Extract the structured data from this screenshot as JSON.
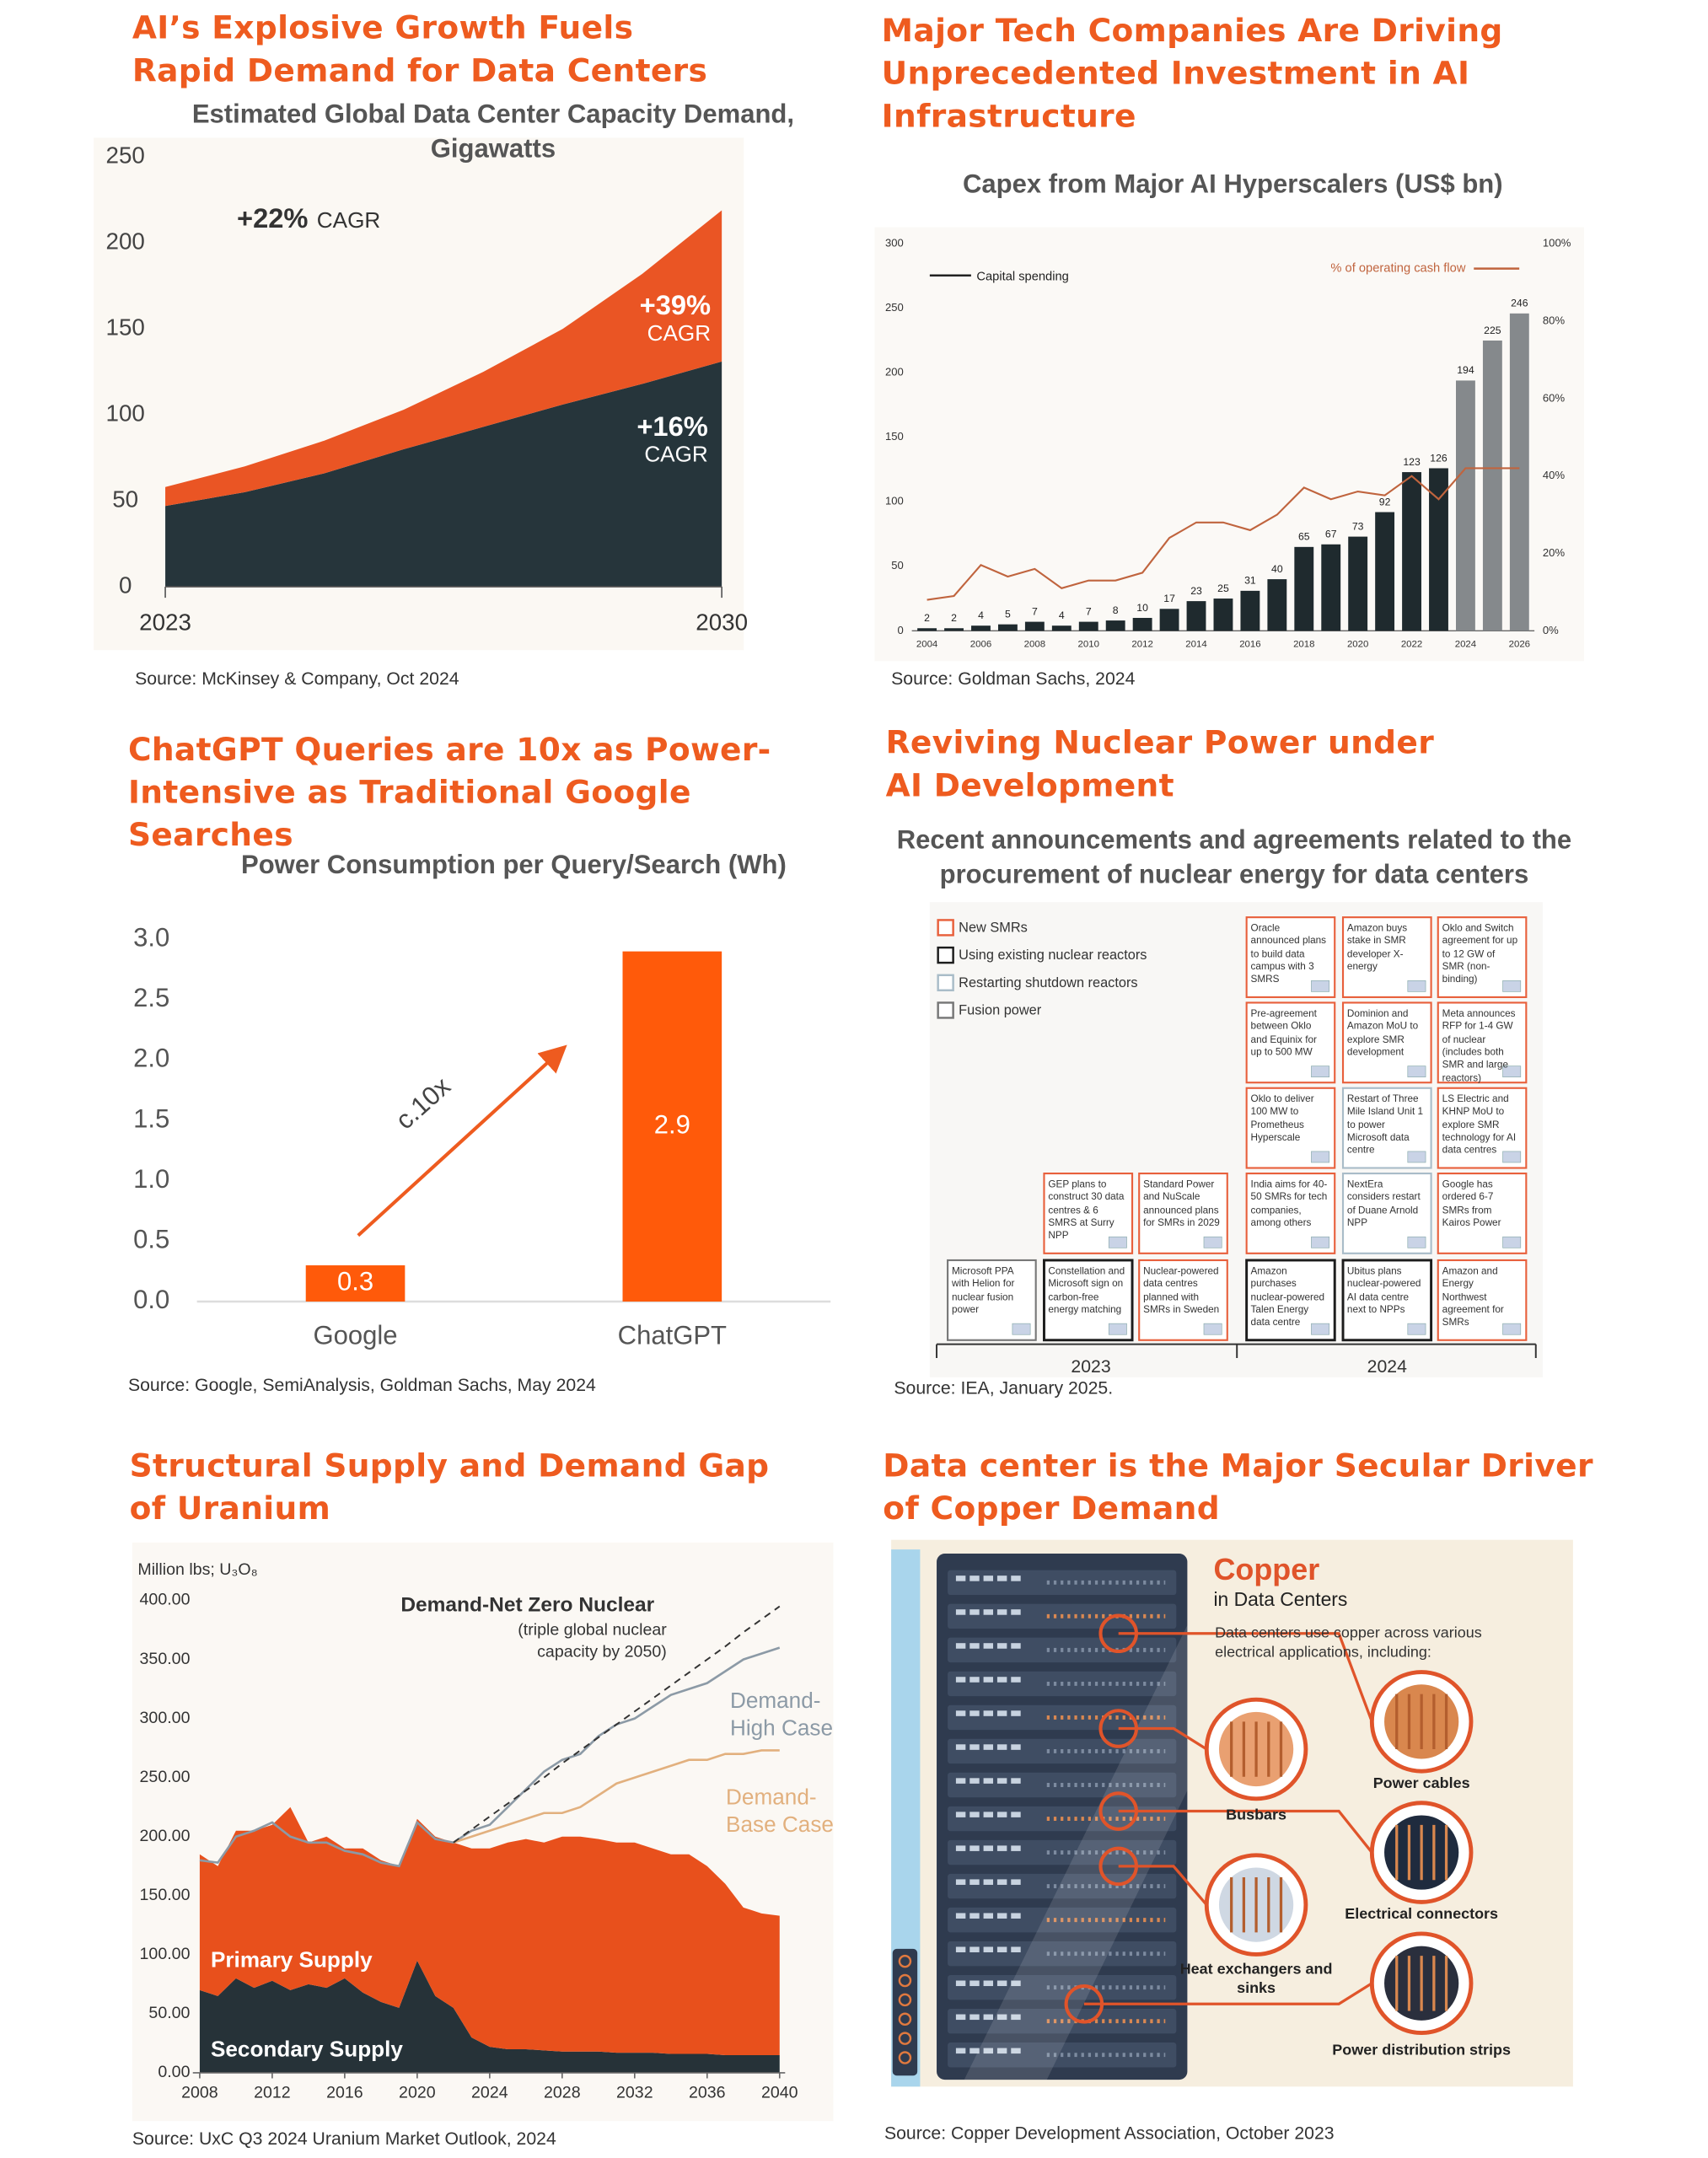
{
  "chart_data": [
    {
      "type": "area",
      "title": "AI’s Explosive Growth Fuels Rapid Demand for Data Centers",
      "subtitle": "Estimated Global Data Center Capacity Demand, Gigawatts",
      "x": [
        2023,
        2024,
        2025,
        2026,
        2027,
        2028,
        2029,
        2030
      ],
      "xlim": [
        2023,
        2030
      ],
      "xticks": [
        2023,
        2030
      ],
      "ylim": [
        0,
        250
      ],
      "yticks": [
        0,
        50,
        100,
        150,
        200,
        250
      ],
      "stacked": true,
      "series": [
        {
          "color": "#26353b",
          "values": [
            47,
            55,
            66,
            80,
            93,
            106,
            118,
            131
          ]
        },
        {
          "color": "#ea5524",
          "values": [
            11,
            15,
            19,
            23,
            32,
            44,
            64,
            88
          ]
        }
      ],
      "annotations": [
        {
          "text": "+22%",
          "suffix": "CAGR"
        },
        {
          "text": "+39%",
          "suffix": "CAGR"
        },
        {
          "text": "+16%",
          "suffix": "CAGR"
        }
      ],
      "source": "Source: McKinsey & Company, Oct 2024"
    },
    {
      "type": "bar",
      "title": "Major Tech Companies Are Driving Unprecedented Investment in AI Infrastructure",
      "subtitle": "Capex from Major AI Hyperscalers (US$ bn)",
      "categories": [
        "2004",
        null,
        "2006",
        null,
        "2008",
        null,
        "2010",
        null,
        "2012",
        null,
        "2014",
        null,
        "2016",
        null,
        "2018",
        null,
        "2020",
        null,
        "2022",
        null,
        "2024",
        null,
        "2026"
      ],
      "ylim": [
        0,
        300
      ],
      "yticks": [
        0,
        50,
        100,
        150,
        200,
        250,
        300
      ],
      "y2lim": [
        0,
        100
      ],
      "y2ticks": [
        {
          "value": 0,
          "label": "0%"
        },
        {
          "value": 20,
          "label": "20%"
        },
        {
          "value": 40,
          "label": "40%"
        },
        {
          "value": 60,
          "label": "60%"
        },
        {
          "value": 80,
          "label": "80%"
        },
        {
          "value": 100,
          "label": "100%"
        }
      ],
      "series": [
        {
          "name": "Capital spending",
          "type": "bar",
          "values": [
            2,
            2,
            4,
            5,
            7,
            4,
            7,
            8,
            10,
            17,
            23,
            25,
            31,
            40,
            65,
            67,
            73,
            92,
            123,
            126,
            194,
            225,
            246
          ],
          "colors": [
            "#1f2a2e",
            "#1f2a2e",
            "#1f2a2e",
            "#1f2a2e",
            "#1f2a2e",
            "#1f2a2e",
            "#1f2a2e",
            "#1f2a2e",
            "#1f2a2e",
            "#1f2a2e",
            "#1f2a2e",
            "#1f2a2e",
            "#1f2a2e",
            "#1f2a2e",
            "#1f2a2e",
            "#1f2a2e",
            "#1f2a2e",
            "#1f2a2e",
            "#1f2a2e",
            "#1f2a2e",
            "#85898c",
            "#85898c",
            "#85898c"
          ]
        },
        {
          "name": "% of operating cash flow",
          "type": "line",
          "axis": "y2",
          "color": "#c0643e",
          "values": [
            8,
            9,
            17,
            14,
            16,
            11,
            13,
            13,
            15,
            24,
            28,
            28,
            26,
            30,
            37,
            34,
            36,
            35,
            40,
            34,
            42,
            42,
            42
          ]
        }
      ],
      "source": "Source: Goldman Sachs, 2024"
    },
    {
      "type": "bar",
      "title": "ChatGPT Queries are 10x as Power-Intensive as Traditional Google Searches",
      "subtitle": "Power Consumption per Query/Search (Wh)",
      "categories": [
        "Google",
        "ChatGPT"
      ],
      "values": [
        0.3,
        2.9
      ],
      "color": "#ff5a0a",
      "ylim": [
        0,
        3
      ],
      "yticks": [
        {
          "value": 0,
          "label": "0.0"
        },
        0.5,
        {
          "value": 1,
          "label": "1.0"
        },
        1.5,
        {
          "value": 2,
          "label": "2.0"
        },
        2.5,
        {
          "value": 3,
          "label": "3.0"
        }
      ],
      "annotation": "c.10x",
      "source": "Source: Google, SemiAnalysis, Goldman Sachs, May 2024"
    },
    {
      "type": "area",
      "title": "Structural Supply and Demand Gap of Uranium",
      "ylabel": "Million lbs; U₃O₈",
      "x": [
        2008,
        2009,
        2010,
        2011,
        2012,
        2013,
        2014,
        2015,
        2016,
        2017,
        2018,
        2019,
        2020,
        2021,
        2022,
        2023,
        2024,
        2025,
        2026,
        2027,
        2028,
        2029,
        2030,
        2031,
        2032,
        2033,
        2034,
        2035,
        2036,
        2037,
        2038,
        2039,
        2040
      ],
      "xlim": [
        2008,
        2040
      ],
      "xticks": [
        2008,
        2012,
        2016,
        2020,
        2024,
        2028,
        2032,
        2036,
        2040
      ],
      "ylim": [
        0,
        400
      ],
      "yticks": [
        {
          "value": 0,
          "label": "0.00"
        },
        {
          "value": 50,
          "label": "50.00"
        },
        {
          "value": 100,
          "label": "100.00"
        },
        {
          "value": 150,
          "label": "150.00"
        },
        {
          "value": 200,
          "label": "200.00"
        },
        {
          "value": 250,
          "label": "250.00"
        },
        {
          "value": 300,
          "label": "300.00"
        },
        {
          "value": 350,
          "label": "350.00"
        },
        {
          "value": 400,
          "label": "400.00"
        }
      ],
      "stacked": true,
      "series": [
        {
          "name": "Secondary Supply",
          "type": "area",
          "color": "#263238",
          "values": [
            70,
            65,
            80,
            72,
            78,
            70,
            75,
            72,
            80,
            68,
            60,
            55,
            95,
            65,
            55,
            30,
            22,
            20,
            20,
            19,
            18,
            18,
            18,
            17,
            17,
            17,
            16,
            16,
            16,
            15,
            15,
            15,
            15
          ]
        },
        {
          "name": "Primary Supply",
          "type": "area",
          "color": "#e8501c",
          "values": [
            115,
            110,
            125,
            133,
            132,
            155,
            120,
            128,
            110,
            122,
            120,
            120,
            120,
            135,
            140,
            160,
            168,
            175,
            178,
            176,
            182,
            182,
            180,
            178,
            178,
            173,
            169,
            169,
            159,
            145,
            125,
            120,
            118
          ]
        },
        {
          "name": "Demand-High Case",
          "type": "line",
          "color": "#8c9aa6",
          "values": [
            180,
            178,
            200,
            205,
            212,
            200,
            195,
            195,
            188,
            185,
            178,
            175,
            212,
            198,
            195,
            205,
            210,
            225,
            240,
            255,
            265,
            270,
            285,
            295,
            300,
            310,
            320,
            325,
            330,
            340,
            350,
            355,
            360
          ]
        },
        {
          "name": "Demand-Base Case",
          "type": "line",
          "color": "#e2b07e",
          "values": [
            null,
            null,
            null,
            null,
            null,
            null,
            null,
            null,
            null,
            null,
            null,
            null,
            null,
            null,
            195,
            200,
            205,
            210,
            215,
            220,
            220,
            225,
            235,
            245,
            250,
            255,
            260,
            265,
            265,
            270,
            270,
            273,
            273
          ]
        },
        {
          "name": "Demand-Net Zero Nuclear",
          "type": "line",
          "dashed": true,
          "color": "#333333",
          "note": "(triple global nuclear capacity by 2050)",
          "values": [
            null,
            null,
            null,
            null,
            null,
            null,
            null,
            null,
            null,
            null,
            null,
            null,
            null,
            null,
            195,
            206,
            217,
            228,
            239,
            250,
            262,
            273,
            284,
            295,
            306,
            317,
            328,
            339,
            350,
            361,
            373,
            384,
            395
          ]
        }
      ],
      "source": "Source: UxC Q3 2024 Uranium Market Outlook, 2024"
    }
  ],
  "nuclear": {
    "title": "Reviving Nuclear Power under AI Development",
    "subtitle": "Recent announcements and agreements related to the procurement of nuclear energy for data centers",
    "legend": [
      {
        "label": "New SMRs",
        "color": "#e8603c"
      },
      {
        "label": "Using existing nuclear reactors",
        "color": "#1c1c1c"
      },
      {
        "label": "Restarting shutdown reactors",
        "color": "#a9bcc8"
      },
      {
        "label": "Fusion power",
        "color": "#777777"
      }
    ],
    "years": [
      "2023",
      "2024"
    ],
    "columns": [
      [
        {
          "text": "Microsoft PPA with Helion for nuclear fusion power",
          "color": "#777777"
        }
      ],
      [
        {
          "text": "Constellation and Microsoft sign on carbon-free energy matching",
          "color": "#1c1c1c"
        },
        {
          "text": "GEP plans to construct 30 data centres & 6 SMRS at Surry NPP",
          "color": "#e8603c"
        }
      ],
      [
        {
          "text": "Nuclear-powered data centres planned with SMRs in Sweden",
          "color": "#e8603c"
        },
        {
          "text": "Standard Power and NuScale announced plans for SMRs in 2029",
          "color": "#e8603c"
        }
      ],
      [
        {
          "text": "Amazon purchases nuclear-powered Talen Energy data centre",
          "color": "#1c1c1c"
        },
        {
          "text": "India aims for 40-50 SMRs for tech companies, among others",
          "color": "#e8603c"
        },
        {
          "text": "Oklo to deliver 100 MW to Prometheus Hyperscale",
          "color": "#e8603c"
        },
        {
          "text": "Pre-agreement between Oklo and Equinix for up to 500 MW",
          "color": "#e8603c"
        },
        {
          "text": "Oracle announced plans to build data campus with 3 SMRS",
          "color": "#e8603c"
        }
      ],
      [
        {
          "text": "Ubitus plans nuclear-powered AI data centre next to NPPs",
          "color": "#1c1c1c"
        },
        {
          "text": "NextEra considers restart of Duane Arnold NPP",
          "color": "#a9bcc8"
        },
        {
          "text": "Restart of Three Mile Island Unit 1 to power Microsoft data centre",
          "color": "#a9bcc8"
        },
        {
          "text": "Dominion and Amazon MoU to explore SMR development",
          "color": "#e8603c"
        },
        {
          "text": "Amazon buys stake in SMR developer X-energy",
          "color": "#e8603c"
        }
      ],
      [
        {
          "text": "Amazon and Energy Northwest agreement for SMRs",
          "color": "#e8603c"
        },
        {
          "text": "Google has ordered 6-7 SMRs from Kairos Power",
          "color": "#e8603c"
        },
        {
          "text": "LS Electric and KHNP MoU to explore SMR technology for AI data centres",
          "color": "#e8603c"
        },
        {
          "text": "Meta announces RFP for 1-4 GW of nuclear (includes both SMR and large reactors)",
          "color": "#e8603c"
        },
        {
          "text": "Oklo and Switch agreement for up to 12 GW of SMR (non-binding)",
          "color": "#e8603c"
        }
      ]
    ],
    "source": "Source: IEA, January 2025."
  },
  "copper": {
    "title": "Data center is the Major Secular Driver of Copper Demand",
    "heading": "Copper",
    "subheading": "in Data Centers",
    "description": "Data centers use copper across various electrical applications, including:",
    "applications": [
      "Power cables",
      "Busbars",
      "Electrical connectors",
      "Heat exchangers and sinks",
      "Power distribution strips"
    ],
    "source": "Source: Copper Development Association, October 2023"
  }
}
